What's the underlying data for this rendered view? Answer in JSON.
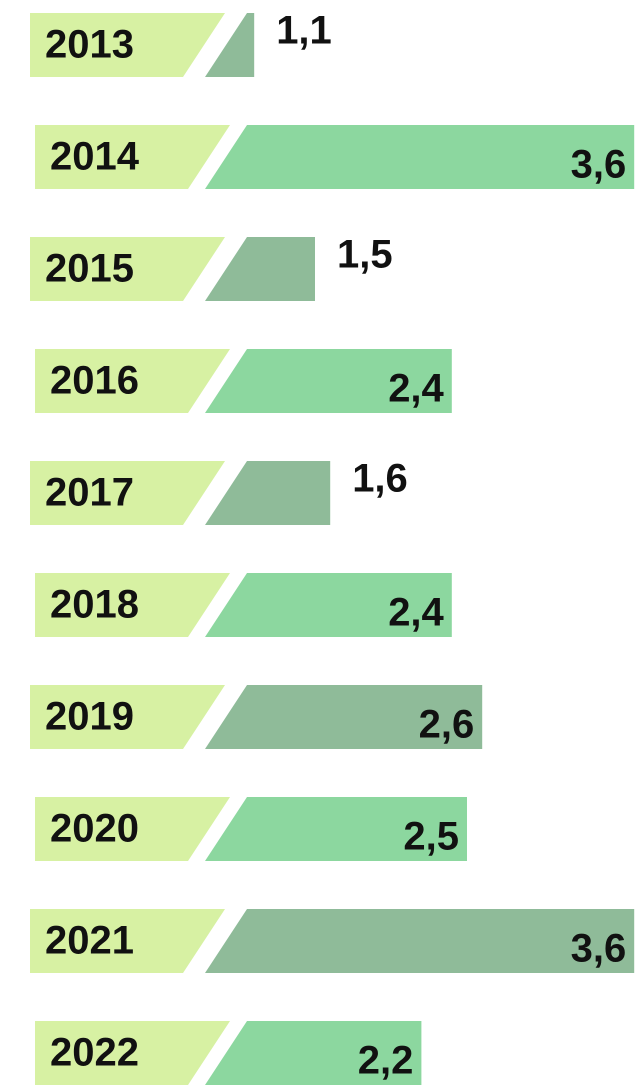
{
  "chart_data": {
    "type": "bar",
    "orientation": "horizontal",
    "categories": [
      "2013",
      "2014",
      "2015",
      "2016",
      "2017",
      "2018",
      "2019",
      "2020",
      "2021",
      "2022"
    ],
    "values": [
      1.1,
      3.6,
      1.5,
      2.4,
      1.6,
      2.4,
      2.6,
      2.5,
      3.6,
      2.2
    ],
    "value_labels": [
      "1,1",
      "3,6",
      "1,5",
      "2,4",
      "1,6",
      "2,4",
      "2,6",
      "2,5",
      "3,6",
      "2,2"
    ],
    "colors": [
      "#8fbb99",
      "#8cd79f",
      "#8fbb99",
      "#8cd79f",
      "#8fbb99",
      "#8cd79f",
      "#8fbb99",
      "#8cd79f",
      "#8fbb99",
      "#8cd79f"
    ],
    "label_color": "#d7f1a3"
  }
}
